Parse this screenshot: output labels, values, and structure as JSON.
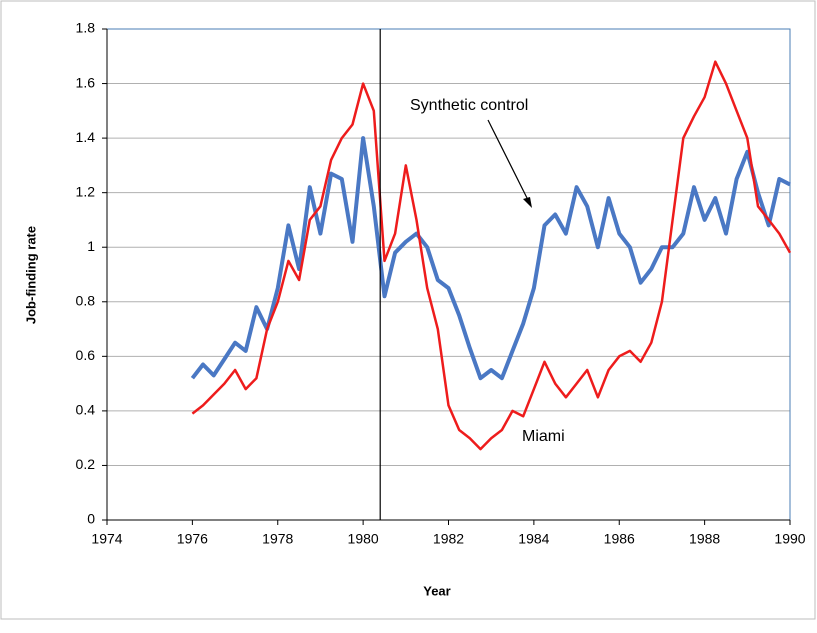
{
  "chart_data": {
    "type": "line",
    "x_label": "Year",
    "y_label": "Job-finding rate",
    "xlim": [
      1974,
      1990
    ],
    "xticks": [
      1974,
      1976,
      1978,
      1980,
      1982,
      1984,
      1986,
      1988,
      1990
    ],
    "ylim": [
      0,
      1.8
    ],
    "yticks": [
      0,
      0.2,
      0.4,
      0.6,
      0.8,
      1,
      1.2,
      1.4,
      1.6,
      1.8
    ],
    "grid": true,
    "vline": 1980.4,
    "x": [
      1976,
      1976.25,
      1976.5,
      1976.75,
      1977,
      1977.25,
      1977.5,
      1977.75,
      1978,
      1978.25,
      1978.5,
      1978.75,
      1979,
      1979.25,
      1979.5,
      1979.75,
      1980,
      1980.25,
      1980.5,
      1980.75,
      1981,
      1981.25,
      1981.5,
      1981.75,
      1982,
      1982.25,
      1982.5,
      1982.75,
      1983,
      1983.25,
      1983.5,
      1983.75,
      1984,
      1984.25,
      1984.5,
      1984.75,
      1985,
      1985.25,
      1985.5,
      1985.75,
      1986,
      1986.25,
      1986.5,
      1986.75,
      1987,
      1987.25,
      1987.5,
      1987.75,
      1988,
      1988.25,
      1988.5,
      1988.75,
      1989,
      1989.25,
      1989.5,
      1989.75,
      1990
    ],
    "series": [
      {
        "name": "Synthetic control",
        "color": "#4a78c4",
        "values": [
          0.52,
          0.57,
          0.53,
          0.59,
          0.65,
          0.62,
          0.78,
          0.7,
          0.85,
          1.08,
          0.92,
          1.22,
          1.05,
          1.27,
          1.25,
          1.02,
          1.4,
          1.15,
          0.82,
          0.98,
          1.02,
          1.05,
          1.0,
          0.88,
          0.85,
          0.75,
          0.63,
          0.52,
          0.55,
          0.52,
          0.62,
          0.72,
          0.85,
          1.08,
          1.12,
          1.05,
          1.22,
          1.15,
          1.0,
          1.18,
          1.05,
          1.0,
          0.87,
          0.92,
          1.0,
          1.0,
          1.05,
          1.22,
          1.1,
          1.18,
          1.05,
          1.25,
          1.35,
          1.2,
          1.08,
          1.25,
          1.23
        ]
      },
      {
        "name": "Miami",
        "color": "#ee1c1c",
        "values": [
          0.39,
          0.42,
          0.46,
          0.5,
          0.55,
          0.48,
          0.52,
          0.7,
          0.8,
          0.95,
          0.88,
          1.1,
          1.15,
          1.32,
          1.4,
          1.45,
          1.6,
          1.5,
          0.95,
          1.05,
          1.3,
          1.1,
          0.85,
          0.7,
          0.42,
          0.33,
          0.3,
          0.26,
          0.3,
          0.33,
          0.4,
          0.38,
          0.48,
          0.58,
          0.5,
          0.45,
          0.5,
          0.55,
          0.45,
          0.55,
          0.6,
          0.62,
          0.58,
          0.65,
          0.8,
          1.1,
          1.4,
          1.48,
          1.55,
          1.68,
          1.6,
          1.5,
          1.4,
          1.15,
          1.1,
          1.05,
          0.98
        ]
      }
    ]
  }
}
